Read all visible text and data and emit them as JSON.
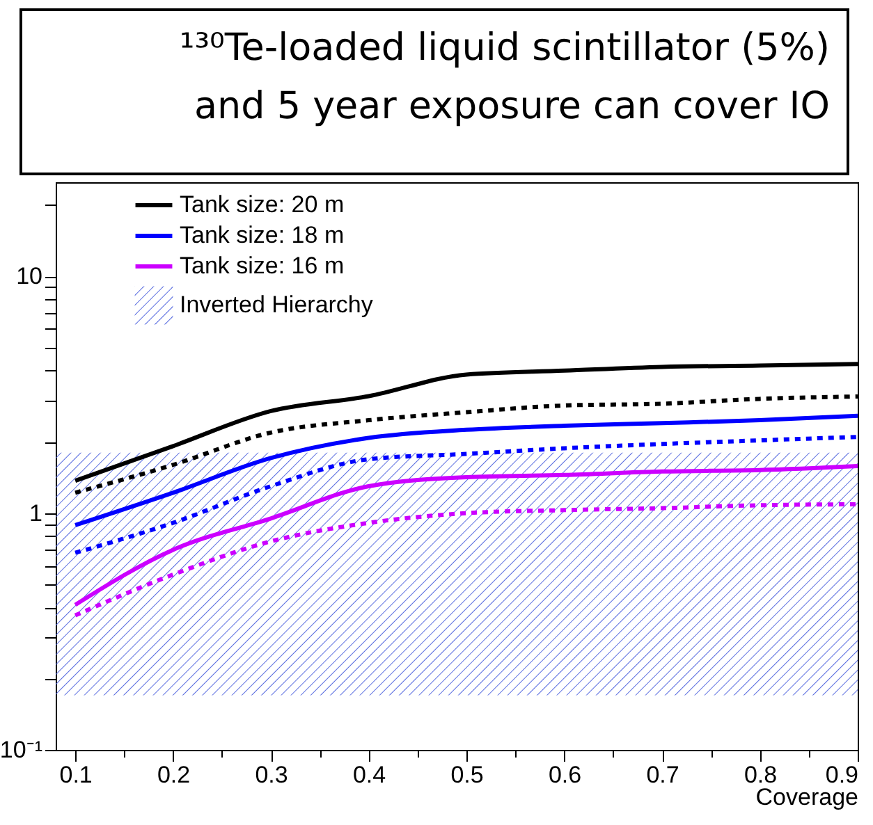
{
  "chart_data": {
    "type": "line",
    "title": "¹³⁰Te-loaded liquid scintillator (5%) and 5 year exposure can cover IO",
    "xlabel": "Coverage",
    "x": [
      0.1,
      0.2,
      0.3,
      0.4,
      0.5,
      0.6,
      0.7,
      0.8,
      0.9
    ],
    "series": [
      {
        "name": "Tank size: 20 m",
        "color": "#000000",
        "line_style": "solid",
        "values": [
          1.37,
          1.92,
          2.7,
          3.12,
          3.85,
          4.0,
          4.15,
          4.2,
          4.27
        ]
      },
      {
        "color": "#000000",
        "line_style": "dotted",
        "values": [
          1.22,
          1.6,
          2.19,
          2.47,
          2.67,
          2.85,
          2.9,
          3.04,
          3.11
        ]
      },
      {
        "name": "Tank size: 18 m",
        "color": "#0000ff",
        "line_style": "solid",
        "values": [
          0.89,
          1.22,
          1.71,
          2.08,
          2.25,
          2.34,
          2.4,
          2.47,
          2.58
        ]
      },
      {
        "color": "#0000ff",
        "line_style": "dotted",
        "values": [
          0.68,
          0.91,
          1.3,
          1.69,
          1.78,
          1.88,
          1.96,
          2.03,
          2.1
        ]
      },
      {
        "name": "Tank size: 16 m",
        "color": "#cc00ff",
        "line_style": "solid",
        "values": [
          0.41,
          0.7,
          0.95,
          1.3,
          1.42,
          1.45,
          1.5,
          1.52,
          1.58
        ]
      },
      {
        "color": "#cc00ff",
        "line_style": "dotted",
        "values": [
          0.37,
          0.55,
          0.76,
          0.91,
          1.0,
          1.03,
          1.05,
          1.08,
          1.09
        ]
      }
    ],
    "bands": [
      {
        "axis": "y",
        "from": 0.17,
        "to": 1.8,
        "label": "Inverted Hierarchy",
        "color": "#5b6ee0"
      }
    ],
    "log": "y",
    "legend": "top left",
    "grid": false,
    "xlim": [
      0.08,
      0.9
    ],
    "xticks": [
      0.1,
      {
        "value": 0.15,
        "label": null
      },
      0.2,
      {
        "value": 0.25,
        "label": null
      },
      0.3,
      {
        "value": 0.35,
        "label": null
      },
      0.4,
      {
        "value": 0.45,
        "label": null
      },
      0.5,
      {
        "value": 0.55,
        "label": null
      },
      0.6,
      {
        "value": 0.65,
        "label": null
      },
      0.7,
      {
        "value": 0.75,
        "label": null
      },
      0.8,
      {
        "value": 0.85,
        "label": null
      },
      0.9
    ],
    "ylim": [
      0.1,
      25
    ],
    "yticks": [
      {
        "value": 0.1,
        "label": "10⁻¹"
      },
      {
        "value": 0.2,
        "label": null
      },
      {
        "value": 0.3,
        "label": null
      },
      {
        "value": 0.4,
        "label": null
      },
      {
        "value": 0.5,
        "label": null
      },
      {
        "value": 0.6,
        "label": null
      },
      {
        "value": 0.7,
        "label": null
      },
      {
        "value": 0.8,
        "label": null
      },
      {
        "value": 0.9,
        "label": null
      },
      1,
      {
        "value": 2,
        "label": null
      },
      {
        "value": 3,
        "label": null
      },
      {
        "value": 4,
        "label": null
      },
      {
        "value": 5,
        "label": null
      },
      {
        "value": 6,
        "label": null
      },
      {
        "value": 7,
        "label": null
      },
      {
        "value": 8,
        "label": null
      },
      {
        "value": 9,
        "label": null
      },
      10,
      {
        "value": 20,
        "label": null
      }
    ]
  }
}
